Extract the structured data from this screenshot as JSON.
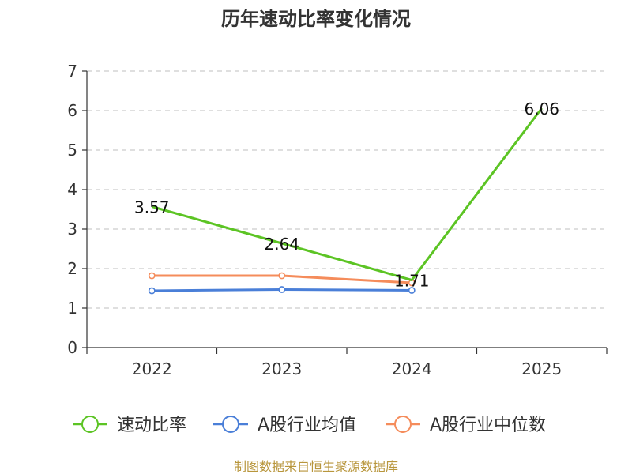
{
  "chart_data": {
    "type": "line",
    "title": "历年速动比率变化情况",
    "categories": [
      "2022",
      "2023",
      "2024",
      "2025"
    ],
    "ylim": [
      0,
      7
    ],
    "yticks": [
      0,
      1,
      2,
      3,
      4,
      5,
      6,
      7
    ],
    "ytick_labels": [
      "0",
      "1",
      "2",
      "3",
      "4",
      "5",
      "6",
      "7"
    ],
    "grid": true,
    "legend_position": "bottom",
    "series": [
      {
        "name": "速动比率",
        "color": "#5cc424",
        "values": [
          3.57,
          2.64,
          1.71,
          6.06
        ],
        "labels": [
          "3.57",
          "2.64",
          "1.71",
          "6.06"
        ]
      },
      {
        "name": "A股行业均值",
        "color": "#4a7fd8",
        "values": [
          1.44,
          1.47,
          1.45,
          null
        ]
      },
      {
        "name": "A股行业中位数",
        "color": "#f58c5b",
        "values": [
          1.82,
          1.82,
          1.64,
          null
        ]
      }
    ],
    "source": "制图数据来自恒生聚源数据库"
  }
}
